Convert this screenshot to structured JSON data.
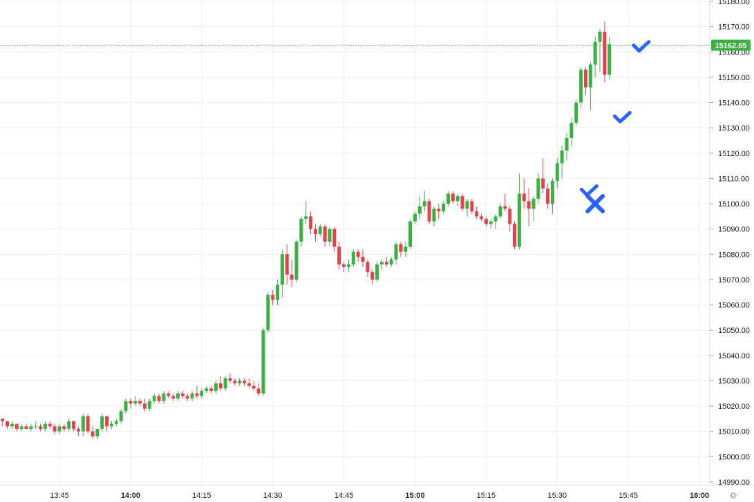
{
  "settings_icon": "sun-gear-icon",
  "colors": {
    "up": "#3cb043",
    "down": "#e0434f",
    "grid": "#ececec",
    "last_price": "#3cb043",
    "marker": "#2962ff"
  },
  "last_price_label": "15162.65",
  "chart_data": {
    "type": "candlestick",
    "interval_minutes": 1,
    "last_price": 15162.65,
    "ylim": [
      14990,
      15180
    ],
    "y_ticks": [
      "15180.00",
      "15170.00",
      "15160.00",
      "15150.00",
      "15140.00",
      "15130.00",
      "15120.00",
      "15110.00",
      "15100.00",
      "15090.00",
      "15080.00",
      "15070.00",
      "15060.00",
      "15050.00",
      "15040.00",
      "15030.00",
      "15020.00",
      "15010.00",
      "15000.00",
      "14990.00"
    ],
    "x_ticks": [
      {
        "label": "13:45",
        "minute": 825,
        "bold": false
      },
      {
        "label": "14:00",
        "minute": 840,
        "bold": true
      },
      {
        "label": "14:15",
        "minute": 855,
        "bold": false
      },
      {
        "label": "14:30",
        "minute": 870,
        "bold": false
      },
      {
        "label": "14:45",
        "minute": 885,
        "bold": false
      },
      {
        "label": "15:00",
        "minute": 900,
        "bold": true
      },
      {
        "label": "15:15",
        "minute": 915,
        "bold": false
      },
      {
        "label": "15:30",
        "minute": 930,
        "bold": false
      },
      {
        "label": "15:45",
        "minute": 945,
        "bold": false
      },
      {
        "label": "16:00",
        "minute": 960,
        "bold": true
      }
    ],
    "grid": true,
    "ohlc": [
      [
        15015,
        15015,
        15012,
        15014
      ],
      [
        15014,
        15014,
        15011,
        15012
      ],
      [
        15012,
        15014,
        15011,
        15013
      ],
      [
        15013,
        15013,
        15010,
        15011
      ],
      [
        15011,
        15013,
        15010,
        15012
      ],
      [
        15012,
        15013,
        15011,
        15011
      ],
      [
        15011,
        15013,
        15010,
        15012
      ],
      [
        15012,
        15014,
        15011,
        15012
      ],
      [
        15012,
        15013,
        15010,
        15011
      ],
      [
        15011,
        15014,
        15010,
        15013
      ],
      [
        15013,
        15014,
        15011,
        15012
      ],
      [
        15012,
        15013,
        15009,
        15010
      ],
      [
        15010,
        15013,
        15009,
        15012
      ],
      [
        15012,
        15013,
        15010,
        15011
      ],
      [
        15011,
        15015,
        15010,
        15014
      ],
      [
        15014,
        15014,
        15010,
        15011
      ],
      [
        15011,
        15012,
        15008,
        15010
      ],
      [
        15010,
        15017,
        15008,
        15016
      ],
      [
        15016,
        15017,
        15009,
        15010
      ],
      [
        15010,
        15012,
        15007,
        15008
      ],
      [
        15008,
        15011,
        15007,
        15011
      ],
      [
        15011,
        15017,
        15010,
        15016
      ],
      [
        15016,
        15016,
        15010,
        15012
      ],
      [
        15012,
        15014,
        15011,
        15013
      ],
      [
        15013,
        15015,
        15012,
        15014
      ],
      [
        15014,
        15019,
        15013,
        15018
      ],
      [
        15018,
        15023,
        15017,
        15022
      ],
      [
        15022,
        15023,
        15019,
        15021
      ],
      [
        15021,
        15024,
        15020,
        15022
      ],
      [
        15022,
        15023,
        15020,
        15021
      ],
      [
        15021,
        15023,
        15018,
        15019
      ],
      [
        15019,
        15023,
        15018,
        15022
      ],
      [
        15022,
        15025,
        15021,
        15024
      ],
      [
        15024,
        15025,
        15021,
        15022
      ],
      [
        15022,
        15026,
        15021,
        15025
      ],
      [
        15025,
        15026,
        15023,
        15024
      ],
      [
        15024,
        15025,
        15022,
        15023
      ],
      [
        15023,
        15026,
        15022,
        15025
      ],
      [
        15025,
        15026,
        15023,
        15024
      ],
      [
        15024,
        15025,
        15022,
        15023
      ],
      [
        15023,
        15026,
        15022,
        15025
      ],
      [
        15025,
        15028,
        15023,
        15024
      ],
      [
        15024,
        15027,
        15023,
        15026
      ],
      [
        15026,
        15028,
        15025,
        15027
      ],
      [
        15027,
        15028,
        15025,
        15026
      ],
      [
        15026,
        15030,
        15025,
        15029
      ],
      [
        15029,
        15032,
        15026,
        15027
      ],
      [
        15027,
        15032,
        15026,
        15031
      ],
      [
        15031,
        15033,
        15029,
        15030
      ],
      [
        15030,
        15031,
        15028,
        15029
      ],
      [
        15029,
        15031,
        15028,
        15030
      ],
      [
        15030,
        15031,
        15028,
        15029
      ],
      [
        15029,
        15031,
        15027,
        15028
      ],
      [
        15028,
        15030,
        15026,
        15027
      ],
      [
        15027,
        15029,
        15024,
        15025
      ],
      [
        15025,
        15051,
        15024,
        15050
      ],
      [
        15050,
        15065,
        15049,
        15064
      ],
      [
        15064,
        15066,
        15060,
        15062
      ],
      [
        15062,
        15070,
        15060,
        15068
      ],
      [
        15068,
        15082,
        15063,
        15080
      ],
      [
        15080,
        15084,
        15068,
        15072
      ],
      [
        15072,
        15078,
        15067,
        15070
      ],
      [
        15070,
        15086,
        15069,
        15085
      ],
      [
        15085,
        15095,
        15083,
        15094
      ],
      [
        15094,
        15101,
        15092,
        15095
      ],
      [
        15095,
        15097,
        15088,
        15090
      ],
      [
        15090,
        15092,
        15085,
        15088
      ],
      [
        15088,
        15092,
        15087,
        15091
      ],
      [
        15091,
        15092,
        15083,
        15085
      ],
      [
        15085,
        15091,
        15083,
        15090
      ],
      [
        15090,
        15091,
        15081,
        15083
      ],
      [
        15083,
        15085,
        15074,
        15076
      ],
      [
        15076,
        15077,
        15073,
        15075
      ],
      [
        15075,
        15078,
        15073,
        15076
      ],
      [
        15076,
        15082,
        15075,
        15081
      ],
      [
        15081,
        15082,
        15077,
        15079
      ],
      [
        15079,
        15082,
        15075,
        15077
      ],
      [
        15077,
        15078,
        15071,
        15073
      ],
      [
        15073,
        15074,
        15068,
        15070
      ],
      [
        15070,
        15077,
        15069,
        15076
      ],
      [
        15076,
        15078,
        15074,
        15077
      ],
      [
        15077,
        15079,
        15075,
        15076
      ],
      [
        15076,
        15079,
        15075,
        15078
      ],
      [
        15078,
        15085,
        15076,
        15084
      ],
      [
        15084,
        15085,
        15079,
        15081
      ],
      [
        15081,
        15085,
        15079,
        15083
      ],
      [
        15083,
        15094,
        15082,
        15093
      ],
      [
        15093,
        15097,
        15092,
        15096
      ],
      [
        15096,
        15103,
        15094,
        15099
      ],
      [
        15099,
        15105,
        15097,
        15101
      ],
      [
        15101,
        15102,
        15092,
        15093
      ],
      [
        15093,
        15099,
        15091,
        15098
      ],
      [
        15098,
        15100,
        15094,
        15097
      ],
      [
        15097,
        15101,
        15096,
        15100
      ],
      [
        15100,
        15105,
        15099,
        15104
      ],
      [
        15104,
        15105,
        15100,
        15101
      ],
      [
        15101,
        15104,
        15099,
        15103
      ],
      [
        15103,
        15104,
        15097,
        15098
      ],
      [
        15098,
        15102,
        15095,
        15101
      ],
      [
        15101,
        15102,
        15096,
        15097
      ],
      [
        15097,
        15099,
        15094,
        15095
      ],
      [
        15095,
        15096,
        15093,
        15094
      ],
      [
        15094,
        15095,
        15091,
        15092
      ],
      [
        15092,
        15094,
        15090,
        15093
      ],
      [
        15093,
        15096,
        15090,
        15095
      ],
      [
        15095,
        15100,
        15094,
        15099
      ],
      [
        15099,
        15104,
        15097,
        15098
      ],
      [
        15098,
        15099,
        15089,
        15092
      ],
      [
        15092,
        15093,
        15082,
        15083
      ],
      [
        15083,
        15112,
        15082,
        15104
      ],
      [
        15104,
        15110,
        15098,
        15101
      ],
      [
        15101,
        15106,
        15091,
        15098
      ],
      [
        15098,
        15103,
        15093,
        15102
      ],
      [
        15102,
        15112,
        15100,
        15110
      ],
      [
        15110,
        15118,
        15104,
        15106
      ],
      [
        15106,
        15108,
        15098,
        15100
      ],
      [
        15100,
        15110,
        15096,
        15109
      ],
      [
        15109,
        15118,
        15106,
        15116
      ],
      [
        15116,
        15123,
        15110,
        15121
      ],
      [
        15121,
        15128,
        15117,
        15126
      ],
      [
        15126,
        15134,
        15123,
        15132
      ],
      [
        15132,
        15141,
        15131,
        15140
      ],
      [
        15140,
        15154,
        15138,
        15153
      ],
      [
        15153,
        15154,
        15143,
        15146
      ],
      [
        15146,
        15156,
        15137,
        15155
      ],
      [
        15155,
        15166,
        15150,
        15164
      ],
      [
        15164,
        15169,
        15152,
        15168
      ],
      [
        15168,
        15172,
        15148,
        15151
      ],
      [
        15151,
        15166,
        15149,
        15163
      ]
    ],
    "markers": [
      {
        "type": "check",
        "minute": 937,
        "price": 15104
      },
      {
        "type": "x",
        "minute": 938,
        "price": 15100
      },
      {
        "type": "check",
        "minute": 944,
        "price": 15133
      },
      {
        "type": "check",
        "minute": 948,
        "price": 15161
      }
    ]
  }
}
